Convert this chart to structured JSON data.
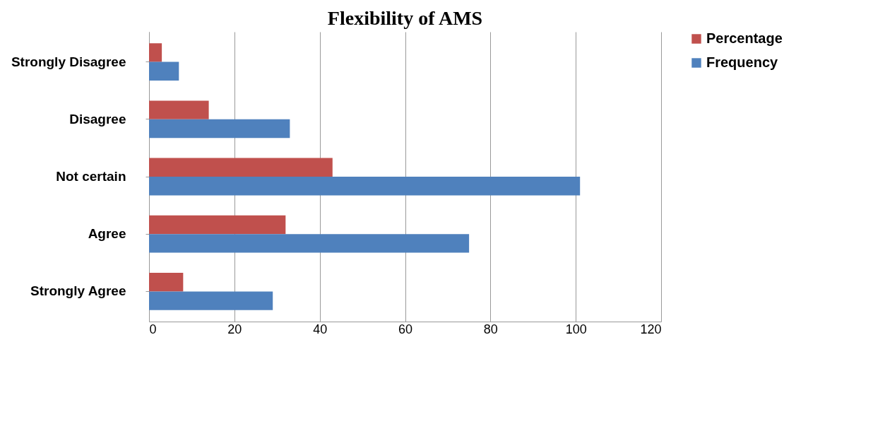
{
  "chart_data": {
    "type": "bar",
    "orientation": "horizontal",
    "title": "Flexibility of AMS",
    "categories": [
      "Strongly Disagree",
      "Disagree",
      "Not certain",
      "Agree",
      "Strongly Agree"
    ],
    "series": [
      {
        "name": "Percentage",
        "color": "#c0504d",
        "values": [
          3,
          14,
          43,
          32,
          8
        ]
      },
      {
        "name": "Frequency",
        "color": "#4f81bd",
        "values": [
          7,
          33,
          101,
          75,
          29
        ]
      }
    ],
    "xlim": [
      0,
      120
    ],
    "xticks": [
      0,
      20,
      40,
      60,
      80,
      100,
      120
    ],
    "grid": "x",
    "legend": "right"
  }
}
